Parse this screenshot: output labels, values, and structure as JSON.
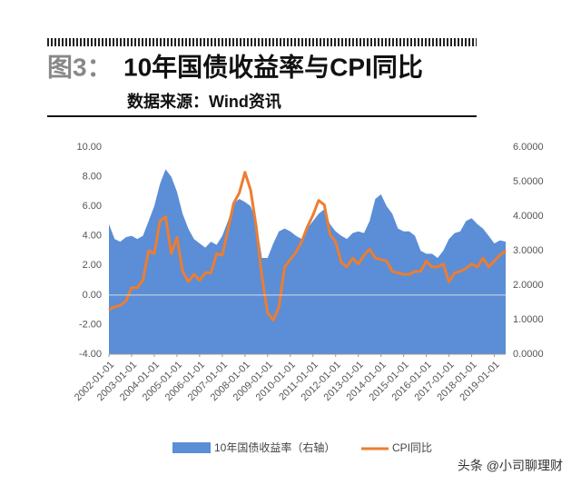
{
  "chart_data": {
    "type": "combo",
    "figure_label": "图3：",
    "title": "10年国债收益率与CPI同比",
    "subtitle": "数据来源：Wind资讯",
    "watermark": "头条 @小司聊理财",
    "x": [
      "2002-01-01",
      "2002-04-01",
      "2002-07-01",
      "2002-10-01",
      "2003-01-01",
      "2003-04-01",
      "2003-07-01",
      "2003-10-01",
      "2004-01-01",
      "2004-04-01",
      "2004-07-01",
      "2004-10-01",
      "2005-01-01",
      "2005-04-01",
      "2005-07-01",
      "2005-10-01",
      "2006-01-01",
      "2006-04-01",
      "2006-07-01",
      "2006-10-01",
      "2007-01-01",
      "2007-04-01",
      "2007-07-01",
      "2007-10-01",
      "2008-01-01",
      "2008-04-01",
      "2008-07-01",
      "2008-10-01",
      "2009-01-01",
      "2009-04-01",
      "2009-07-01",
      "2009-10-01",
      "2010-01-01",
      "2010-04-01",
      "2010-07-01",
      "2010-10-01",
      "2011-01-01",
      "2011-04-01",
      "2011-07-01",
      "2011-10-01",
      "2012-01-01",
      "2012-04-01",
      "2012-07-01",
      "2012-10-01",
      "2013-01-01",
      "2013-04-01",
      "2013-07-01",
      "2013-10-01",
      "2014-01-01",
      "2014-04-01",
      "2014-07-01",
      "2014-10-01",
      "2015-01-01",
      "2015-04-01",
      "2015-07-01",
      "2015-10-01",
      "2016-01-01",
      "2016-04-01",
      "2016-07-01",
      "2016-10-01",
      "2017-01-01",
      "2017-04-01",
      "2017-07-01",
      "2017-10-01",
      "2018-01-01",
      "2018-04-01",
      "2018-07-01",
      "2018-10-01",
      "2019-01-01",
      "2019-04-01",
      "2019-07-01"
    ],
    "xticks": [
      "2002-01-01",
      "2003-01-01",
      "2004-01-01",
      "2005-01-01",
      "2006-01-01",
      "2007-01-01",
      "2008-01-01",
      "2009-01-01",
      "2010-01-01",
      "2011-01-01",
      "2012-01-01",
      "2013-01-01",
      "2014-01-01",
      "2015-01-01",
      "2016-01-01",
      "2017-01-01",
      "2018-01-01",
      "2019-01-01"
    ],
    "series": [
      {
        "name": "10年国债收益率（右轴）",
        "kind": "area",
        "axis": "y2",
        "color": "#5b8ed6",
        "values": [
          3.77,
          3.34,
          3.26,
          3.39,
          3.43,
          3.34,
          3.43,
          3.86,
          4.29,
          4.93,
          5.36,
          5.14,
          4.71,
          4.07,
          3.64,
          3.34,
          3.21,
          3.09,
          3.26,
          3.17,
          3.43,
          3.86,
          4.37,
          4.5,
          4.41,
          4.29,
          3.86,
          2.79,
          2.79,
          3.21,
          3.56,
          3.64,
          3.56,
          3.43,
          3.34,
          3.64,
          3.86,
          4.07,
          4.2,
          3.77,
          3.56,
          3.43,
          3.34,
          3.51,
          3.56,
          3.51,
          3.86,
          4.5,
          4.63,
          4.29,
          4.07,
          3.64,
          3.56,
          3.56,
          3.43,
          3.0,
          2.91,
          2.91,
          2.79,
          3.0,
          3.34,
          3.51,
          3.56,
          3.86,
          3.94,
          3.77,
          3.64,
          3.43,
          3.21,
          3.3,
          3.26
        ]
      },
      {
        "name": "CPI同比",
        "kind": "line",
        "color": "#ed7d31",
        "values": [
          -1.0,
          -0.8,
          -0.7,
          -0.4,
          0.5,
          0.5,
          1.0,
          3.0,
          2.8,
          5.0,
          5.3,
          2.8,
          3.9,
          1.6,
          0.9,
          1.4,
          1.0,
          1.5,
          1.5,
          2.8,
          2.7,
          4.4,
          6.2,
          6.9,
          8.3,
          7.1,
          4.6,
          1.2,
          -1.2,
          -1.7,
          -0.8,
          1.9,
          2.4,
          2.9,
          3.6,
          4.6,
          5.4,
          6.4,
          6.1,
          4.1,
          3.6,
          2.2,
          1.9,
          2.5,
          2.1,
          2.7,
          3.1,
          2.5,
          2.4,
          2.3,
          1.6,
          1.5,
          1.4,
          1.4,
          1.6,
          1.6,
          2.3,
          1.9,
          1.9,
          2.1,
          0.9,
          1.5,
          1.6,
          1.8,
          2.1,
          1.9,
          2.5,
          1.9,
          2.3,
          2.7,
          3.0
        ]
      }
    ],
    "ylim": [
      -4,
      10
    ],
    "yticks": [
      {
        "value": -4,
        "label": "-4.00"
      },
      {
        "value": -2,
        "label": "-2.00"
      },
      {
        "value": 0,
        "label": "0.00"
      },
      {
        "value": 2,
        "label": "2.00"
      },
      {
        "value": 4,
        "label": "4.00"
      },
      {
        "value": 6,
        "label": "6.00"
      },
      {
        "value": 8,
        "label": "8.00"
      },
      {
        "value": 10,
        "label": "10.00"
      }
    ],
    "y2lim": [
      0,
      6
    ],
    "y2ticks": [
      {
        "value": 0,
        "label": "0.0000"
      },
      {
        "value": 1,
        "label": "1.0000"
      },
      {
        "value": 2,
        "label": "2.0000"
      },
      {
        "value": 3,
        "label": "3.0000"
      },
      {
        "value": 4,
        "label": "4.0000"
      },
      {
        "value": 5,
        "label": "5.0000"
      },
      {
        "value": 6,
        "label": "6.0000"
      }
    ]
  }
}
